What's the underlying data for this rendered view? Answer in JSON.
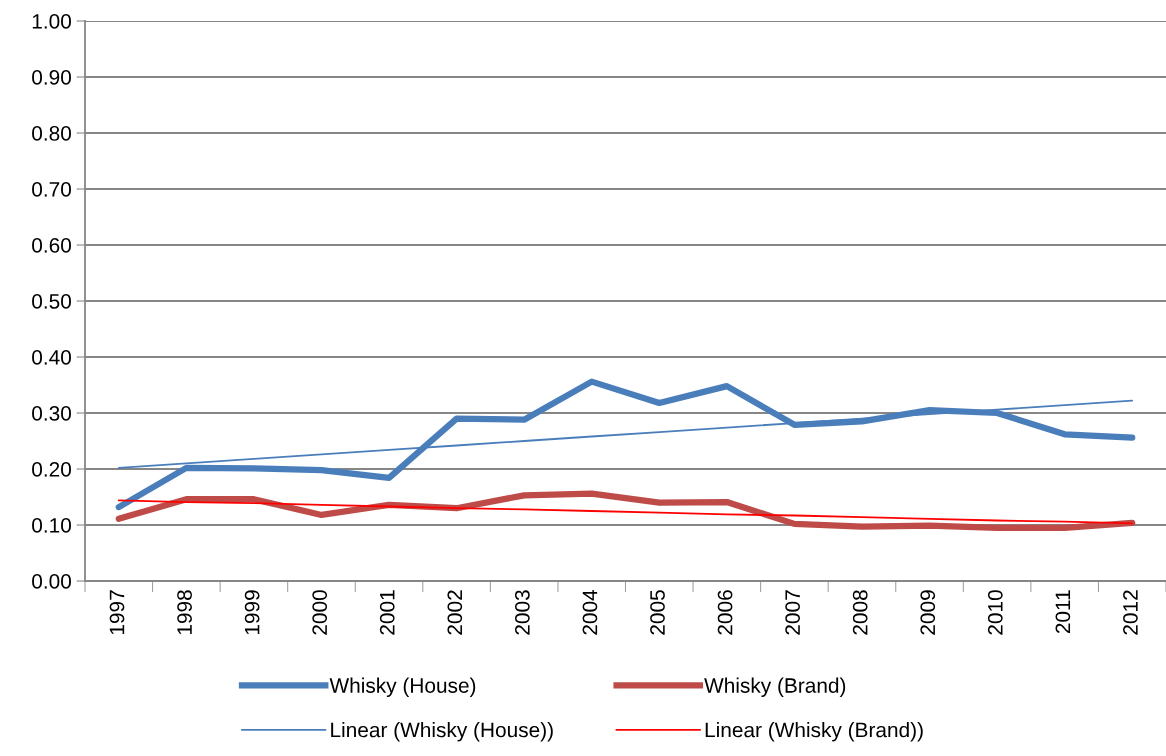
{
  "chart_data": {
    "type": "line",
    "categories": [
      "1997",
      "1998",
      "1999",
      "2000",
      "2001",
      "2002",
      "2003",
      "2004",
      "2005",
      "2006",
      "2007",
      "2008",
      "2009",
      "2010",
      "2011",
      "2012"
    ],
    "series": [
      {
        "name": "Whisky (House)",
        "color": "#4a7ebb",
        "values": [
          0.132,
          0.202,
          0.201,
          0.198,
          0.184,
          0.29,
          0.288,
          0.356,
          0.318,
          0.348,
          0.279,
          0.285,
          0.305,
          0.3,
          0.262,
          0.256
        ]
      },
      {
        "name": "Whisky (Brand)",
        "color": "#be4b48",
        "values": [
          0.111,
          0.146,
          0.146,
          0.118,
          0.136,
          0.13,
          0.153,
          0.156,
          0.14,
          0.141,
          0.102,
          0.097,
          0.099,
          0.095,
          0.095,
          0.104
        ]
      },
      {
        "name": "Linear (Whisky (House))",
        "type": "line",
        "color": "#4a7ebb",
        "values": [
          0.202,
          0.21,
          0.218,
          0.226,
          0.234,
          0.242,
          0.25,
          0.258,
          0.266,
          0.274,
          0.282,
          0.29,
          0.298,
          0.306,
          0.314,
          0.322
        ]
      },
      {
        "name": "Linear (Whisky (Brand))",
        "type": "line",
        "color": "#ff0000",
        "values": [
          0.144,
          0.141,
          0.139,
          0.136,
          0.133,
          0.13,
          0.128,
          0.125,
          0.122,
          0.119,
          0.117,
          0.114,
          0.111,
          0.108,
          0.106,
          0.103
        ]
      }
    ],
    "ylim": [
      0,
      1
    ],
    "yticks": [
      {
        "value": 0,
        "label": "0.00"
      },
      {
        "value": 0.1,
        "label": "0.10"
      },
      {
        "value": 0.2,
        "label": "0.20"
      },
      {
        "value": 0.3,
        "label": "0.30"
      },
      {
        "value": 0.4,
        "label": "0.40"
      },
      {
        "value": 0.5,
        "label": "0.50"
      },
      {
        "value": 0.6,
        "label": "0.60"
      },
      {
        "value": 0.7,
        "label": "0.70"
      },
      {
        "value": 0.8,
        "label": "0.80"
      },
      {
        "value": 0.9,
        "label": "0.90"
      },
      {
        "value": 1,
        "label": "1.00"
      }
    ],
    "grid": "y",
    "legend": "bottom",
    "marker": "none",
    "line_style": "solid"
  }
}
